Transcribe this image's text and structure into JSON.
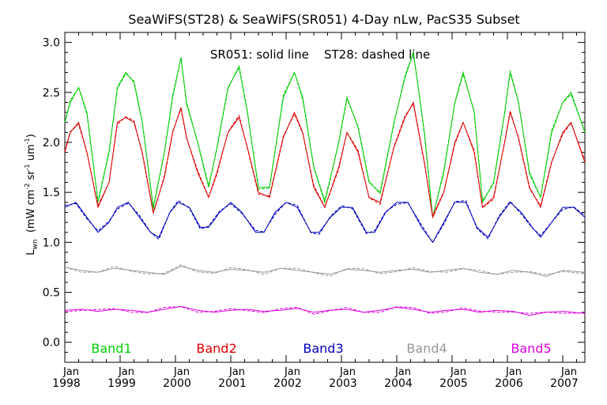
{
  "chart_data": {
    "type": "line",
    "title": "SeaWiFS(ST28) & SeaWiFS(SR051) 4-Day nLw, PacS35 Subset",
    "annotation": "SR051: solid line    ST28: dashed line",
    "ylabel": "L",
    "ylabel_sub": "wn",
    "ylabel_units": "(mW cm",
    "ylabel_units_mid": " sr",
    "ylabel_units_end": " um",
    "ylabel_units_close": ")",
    "ylabel_exp": "-2",
    "ylabel_exp2": "-1",
    "ylabel_exp3": "-1",
    "ylim": [
      -0.2,
      3.1
    ],
    "y_ticks": [
      "0.0",
      "0.5",
      "1.0",
      "1.5",
      "2.0",
      "2.5",
      "3.0"
    ],
    "xlim": [
      1998.0,
      2007.4
    ],
    "x_ticks": [
      {
        "month": "Jan",
        "year": "1998"
      },
      {
        "month": "Jan",
        "year": "1999"
      },
      {
        "month": "Jan",
        "year": "2000"
      },
      {
        "month": "Jan",
        "year": "2001"
      },
      {
        "month": "Jan",
        "year": "2002"
      },
      {
        "month": "Jan",
        "year": "2003"
      },
      {
        "month": "Jan",
        "year": "2004"
      },
      {
        "month": "Jan",
        "year": "2005"
      },
      {
        "month": "Jan",
        "year": "2006"
      },
      {
        "month": "Jan",
        "year": "2007"
      }
    ],
    "grid": false,
    "legend_position": "bottom",
    "series": [
      {
        "name": "Band1",
        "color": "#00cc00",
        "x": [
          1998.0,
          1998.1,
          1998.25,
          1998.4,
          1998.6,
          1998.8,
          1998.95,
          1999.1,
          1999.25,
          1999.4,
          1999.6,
          1999.8,
          1999.95,
          2000.1,
          2000.2,
          2000.4,
          2000.6,
          2000.75,
          2000.95,
          2001.15,
          2001.3,
          2001.5,
          2001.7,
          2001.95,
          2002.15,
          2002.3,
          2002.5,
          2002.7,
          2002.95,
          2003.1,
          2003.3,
          2003.5,
          2003.7,
          2003.95,
          2004.15,
          2004.3,
          2004.5,
          2004.65,
          2004.85,
          2005.05,
          2005.2,
          2005.4,
          2005.55,
          2005.75,
          2005.95,
          2006.05,
          2006.2,
          2006.4,
          2006.6,
          2006.8,
          2007.0,
          2007.15,
          2007.4
        ],
        "values": [
          2.2,
          2.4,
          2.55,
          2.3,
          1.4,
          1.9,
          2.55,
          2.7,
          2.6,
          2.2,
          1.35,
          1.9,
          2.45,
          2.85,
          2.4,
          2.0,
          1.55,
          1.95,
          2.55,
          2.75,
          2.3,
          1.55,
          1.55,
          2.45,
          2.7,
          2.45,
          1.75,
          1.4,
          2.0,
          2.45,
          2.15,
          1.6,
          1.5,
          2.2,
          2.65,
          2.9,
          2.1,
          1.25,
          1.7,
          2.4,
          2.7,
          2.3,
          1.4,
          1.6,
          2.3,
          2.7,
          2.4,
          1.7,
          1.45,
          2.1,
          2.4,
          2.5,
          2.1
        ]
      },
      {
        "name": "Band2",
        "color": "#dd0000",
        "x": [
          1998.0,
          1998.1,
          1998.25,
          1998.4,
          1998.6,
          1998.8,
          1998.95,
          1999.1,
          1999.25,
          1999.4,
          1999.6,
          1999.8,
          1999.95,
          2000.1,
          2000.2,
          2000.4,
          2000.6,
          2000.75,
          2000.95,
          2001.15,
          2001.3,
          2001.5,
          2001.7,
          2001.95,
          2002.15,
          2002.3,
          2002.5,
          2002.7,
          2002.95,
          2003.1,
          2003.3,
          2003.5,
          2003.7,
          2003.95,
          2004.15,
          2004.3,
          2004.5,
          2004.65,
          2004.85,
          2005.05,
          2005.2,
          2005.4,
          2005.55,
          2005.75,
          2005.95,
          2006.05,
          2006.2,
          2006.4,
          2006.6,
          2006.8,
          2007.0,
          2007.15,
          2007.4
        ],
        "values": [
          1.9,
          2.1,
          2.2,
          1.9,
          1.35,
          1.6,
          2.2,
          2.25,
          2.2,
          1.9,
          1.3,
          1.65,
          2.1,
          2.35,
          2.05,
          1.7,
          1.45,
          1.7,
          2.1,
          2.25,
          1.95,
          1.5,
          1.45,
          2.05,
          2.3,
          2.1,
          1.55,
          1.35,
          1.75,
          2.1,
          1.9,
          1.45,
          1.4,
          1.95,
          2.25,
          2.4,
          1.8,
          1.25,
          1.5,
          2.0,
          2.2,
          1.9,
          1.35,
          1.45,
          2.0,
          2.3,
          2.05,
          1.55,
          1.35,
          1.8,
          2.1,
          2.2,
          1.8
        ]
      },
      {
        "name": "Band3",
        "color": "#0000bb",
        "x": [
          1998.0,
          1998.2,
          1998.4,
          1998.6,
          1998.8,
          1998.95,
          1999.15,
          1999.35,
          1999.55,
          1999.7,
          1999.9,
          2000.05,
          2000.25,
          2000.45,
          2000.6,
          2000.8,
          2001.0,
          2001.2,
          2001.45,
          2001.6,
          2001.8,
          2002.0,
          2002.2,
          2002.45,
          2002.6,
          2002.8,
          2003.0,
          2003.2,
          2003.45,
          2003.6,
          2003.8,
          2004.0,
          2004.2,
          2004.45,
          2004.65,
          2004.85,
          2005.05,
          2005.25,
          2005.45,
          2005.65,
          2005.85,
          2006.05,
          2006.25,
          2006.45,
          2006.6,
          2006.8,
          2007.0,
          2007.2,
          2007.4
        ],
        "values": [
          1.35,
          1.4,
          1.25,
          1.1,
          1.2,
          1.35,
          1.4,
          1.25,
          1.1,
          1.05,
          1.3,
          1.4,
          1.35,
          1.15,
          1.15,
          1.3,
          1.4,
          1.3,
          1.1,
          1.1,
          1.3,
          1.4,
          1.35,
          1.1,
          1.1,
          1.25,
          1.35,
          1.35,
          1.1,
          1.1,
          1.3,
          1.4,
          1.4,
          1.15,
          1.0,
          1.2,
          1.4,
          1.4,
          1.15,
          1.05,
          1.25,
          1.4,
          1.3,
          1.15,
          1.05,
          1.2,
          1.35,
          1.35,
          1.25
        ]
      },
      {
        "name": "Band4",
        "color": "#999999",
        "x": [
          1998.0,
          1998.3,
          1998.6,
          1998.9,
          1999.2,
          1999.5,
          1999.8,
          2000.1,
          2000.4,
          2000.7,
          2001.0,
          2001.3,
          2001.6,
          2001.9,
          2002.2,
          2002.5,
          2002.8,
          2003.1,
          2003.4,
          2003.7,
          2004.0,
          2004.3,
          2004.6,
          2004.9,
          2005.2,
          2005.5,
          2005.8,
          2006.1,
          2006.4,
          2006.7,
          2007.0,
          2007.4
        ],
        "values": [
          0.75,
          0.72,
          0.7,
          0.74,
          0.72,
          0.7,
          0.68,
          0.76,
          0.72,
          0.7,
          0.73,
          0.72,
          0.7,
          0.74,
          0.72,
          0.7,
          0.68,
          0.73,
          0.72,
          0.7,
          0.72,
          0.73,
          0.7,
          0.72,
          0.74,
          0.7,
          0.68,
          0.72,
          0.7,
          0.66,
          0.72,
          0.7
        ]
      },
      {
        "name": "Band5",
        "color": "#dd00dd",
        "x": [
          1998.0,
          1998.3,
          1998.6,
          1998.9,
          1999.2,
          1999.5,
          1999.8,
          2000.1,
          2000.4,
          2000.7,
          2001.0,
          2001.3,
          2001.6,
          2001.9,
          2002.2,
          2002.5,
          2002.8,
          2003.1,
          2003.4,
          2003.7,
          2004.0,
          2004.3,
          2004.6,
          2004.9,
          2005.2,
          2005.5,
          2005.8,
          2006.1,
          2006.4,
          2006.7,
          2007.0,
          2007.4
        ],
        "values": [
          0.32,
          0.33,
          0.31,
          0.33,
          0.32,
          0.3,
          0.33,
          0.36,
          0.32,
          0.3,
          0.32,
          0.33,
          0.31,
          0.32,
          0.34,
          0.3,
          0.32,
          0.33,
          0.3,
          0.32,
          0.35,
          0.33,
          0.3,
          0.32,
          0.33,
          0.3,
          0.32,
          0.31,
          0.27,
          0.3,
          0.31,
          0.29
        ]
      }
    ]
  }
}
